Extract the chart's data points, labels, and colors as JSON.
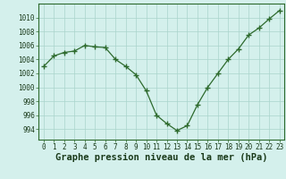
{
  "x": [
    0,
    1,
    2,
    3,
    4,
    5,
    6,
    7,
    8,
    9,
    10,
    11,
    12,
    13,
    14,
    15,
    16,
    17,
    18,
    19,
    20,
    21,
    22,
    23
  ],
  "y": [
    1003.0,
    1004.5,
    1005.0,
    1005.2,
    1006.0,
    1005.8,
    1005.7,
    1004.0,
    1003.0,
    1001.8,
    999.5,
    996.0,
    994.8,
    993.8,
    994.5,
    997.5,
    1000.0,
    1002.0,
    1004.0,
    1005.5,
    1007.5,
    1008.5,
    1009.8,
    1011.0
  ],
  "line_color": "#2d6a2d",
  "marker_color": "#2d6a2d",
  "bg_color": "#d4f0ec",
  "grid_color": "#aad4cc",
  "xlabel": "Graphe pression niveau de la mer (hPa)",
  "xlabel_color": "#1a3a1a",
  "ylim": [
    992.5,
    1012.0
  ],
  "yticks": [
    994,
    996,
    998,
    1000,
    1002,
    1004,
    1006,
    1008,
    1010
  ],
  "xticks": [
    0,
    1,
    2,
    3,
    4,
    5,
    6,
    7,
    8,
    9,
    10,
    11,
    12,
    13,
    14,
    15,
    16,
    17,
    18,
    19,
    20,
    21,
    22,
    23
  ],
  "tick_label_color": "#1a3a1a",
  "tick_label_size": 5.5,
  "xlabel_fontsize": 7.5,
  "xlabel_fontweight": "bold"
}
